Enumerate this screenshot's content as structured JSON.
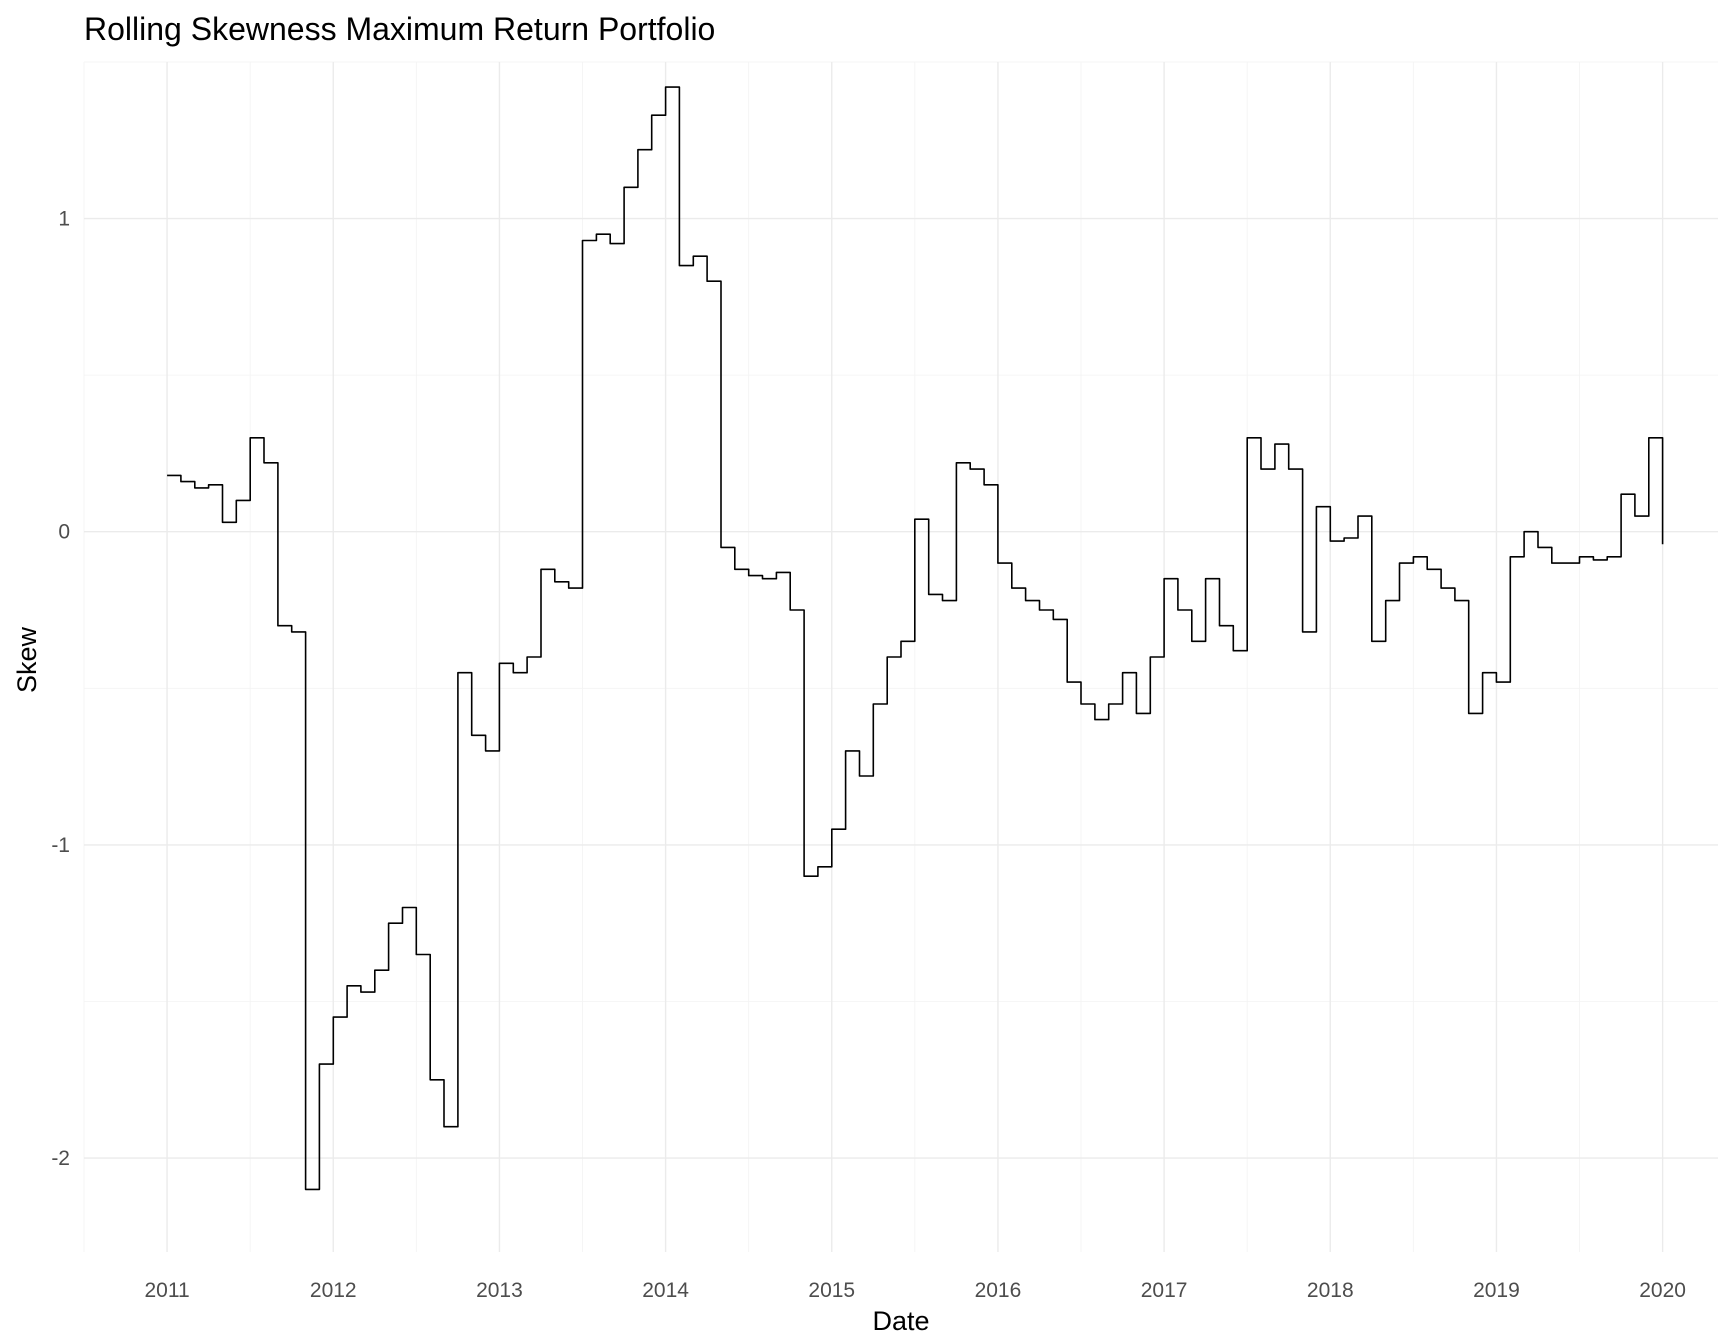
{
  "chart_data": {
    "type": "line",
    "title": "Rolling Skewness Maximum Return Portfolio",
    "xlabel": "Date",
    "ylabel": "Skew",
    "x_ticks": [
      "2011",
      "2012",
      "2013",
      "2014",
      "2015",
      "2016",
      "2017",
      "2018",
      "2019",
      "2020"
    ],
    "y_ticks": [
      -2,
      -1,
      0,
      1
    ],
    "xlim": [
      "2010-07",
      "2020-05"
    ],
    "ylim": [
      -2.3,
      1.5
    ],
    "grid": true,
    "legend": "none",
    "line_color": "#000000",
    "series": [
      {
        "x": [
          "2011-01",
          "2011-02",
          "2011-03",
          "2011-04",
          "2011-05",
          "2011-06",
          "2011-07",
          "2011-08",
          "2011-09",
          "2011-10",
          "2011-11",
          "2011-12",
          "2012-01",
          "2012-02",
          "2012-03",
          "2012-04",
          "2012-05",
          "2012-06",
          "2012-07",
          "2012-08",
          "2012-09",
          "2012-10",
          "2012-11",
          "2012-12",
          "2013-01",
          "2013-02",
          "2013-03",
          "2013-04",
          "2013-05",
          "2013-06",
          "2013-07",
          "2013-08",
          "2013-09",
          "2013-10",
          "2013-11",
          "2013-12",
          "2014-01",
          "2014-02",
          "2014-03",
          "2014-04",
          "2014-05",
          "2014-06",
          "2014-07",
          "2014-08",
          "2014-09",
          "2014-10",
          "2014-11",
          "2014-12",
          "2015-01",
          "2015-02",
          "2015-03",
          "2015-04",
          "2015-05",
          "2015-06",
          "2015-07",
          "2015-08",
          "2015-09",
          "2015-10",
          "2015-11",
          "2015-12",
          "2016-01",
          "2016-02",
          "2016-03",
          "2016-04",
          "2016-05",
          "2016-06",
          "2016-07",
          "2016-08",
          "2016-09",
          "2016-10",
          "2016-11",
          "2016-12",
          "2017-01",
          "2017-02",
          "2017-03",
          "2017-04",
          "2017-05",
          "2017-06",
          "2017-07",
          "2017-08",
          "2017-09",
          "2017-10",
          "2017-11",
          "2017-12",
          "2018-01",
          "2018-02",
          "2018-03",
          "2018-04",
          "2018-05",
          "2018-06",
          "2018-07",
          "2018-08",
          "2018-09",
          "2018-10",
          "2018-11",
          "2018-12",
          "2019-01",
          "2019-02",
          "2019-03",
          "2019-04",
          "2019-05",
          "2019-06",
          "2019-07",
          "2019-08",
          "2019-09",
          "2019-10",
          "2019-11",
          "2019-12",
          "2020-01"
        ],
        "y": [
          0.18,
          0.16,
          0.14,
          0.15,
          0.03,
          0.1,
          0.3,
          0.22,
          -0.3,
          -0.32,
          -2.1,
          -1.7,
          -1.55,
          -1.45,
          -1.47,
          -1.4,
          -1.25,
          -1.2,
          -1.35,
          -1.75,
          -1.9,
          -0.45,
          -0.65,
          -0.7,
          -0.42,
          -0.45,
          -0.4,
          -0.12,
          -0.16,
          -0.18,
          0.93,
          0.95,
          0.92,
          1.1,
          1.22,
          1.33,
          1.42,
          0.85,
          0.88,
          0.8,
          -0.05,
          -0.12,
          -0.14,
          -0.15,
          -0.13,
          -0.25,
          -1.1,
          -1.07,
          -0.95,
          -0.7,
          -0.78,
          -0.55,
          -0.4,
          -0.35,
          0.04,
          -0.2,
          -0.22,
          0.22,
          0.2,
          0.15,
          -0.1,
          -0.18,
          -0.22,
          -0.25,
          -0.28,
          -0.48,
          -0.55,
          -0.6,
          -0.55,
          -0.45,
          -0.58,
          -0.4,
          -0.15,
          -0.25,
          -0.35,
          -0.15,
          -0.3,
          -0.38,
          0.3,
          0.2,
          0.28,
          0.2,
          -0.32,
          0.08,
          -0.03,
          -0.02,
          0.05,
          -0.35,
          -0.22,
          -0.1,
          -0.08,
          -0.12,
          -0.18,
          -0.22,
          -0.58,
          -0.45,
          -0.48,
          -0.08,
          0.0,
          -0.05,
          -0.1,
          -0.1,
          -0.08,
          -0.09,
          -0.08,
          0.12,
          0.05,
          0.3,
          -0.04
        ]
      }
    ]
  }
}
